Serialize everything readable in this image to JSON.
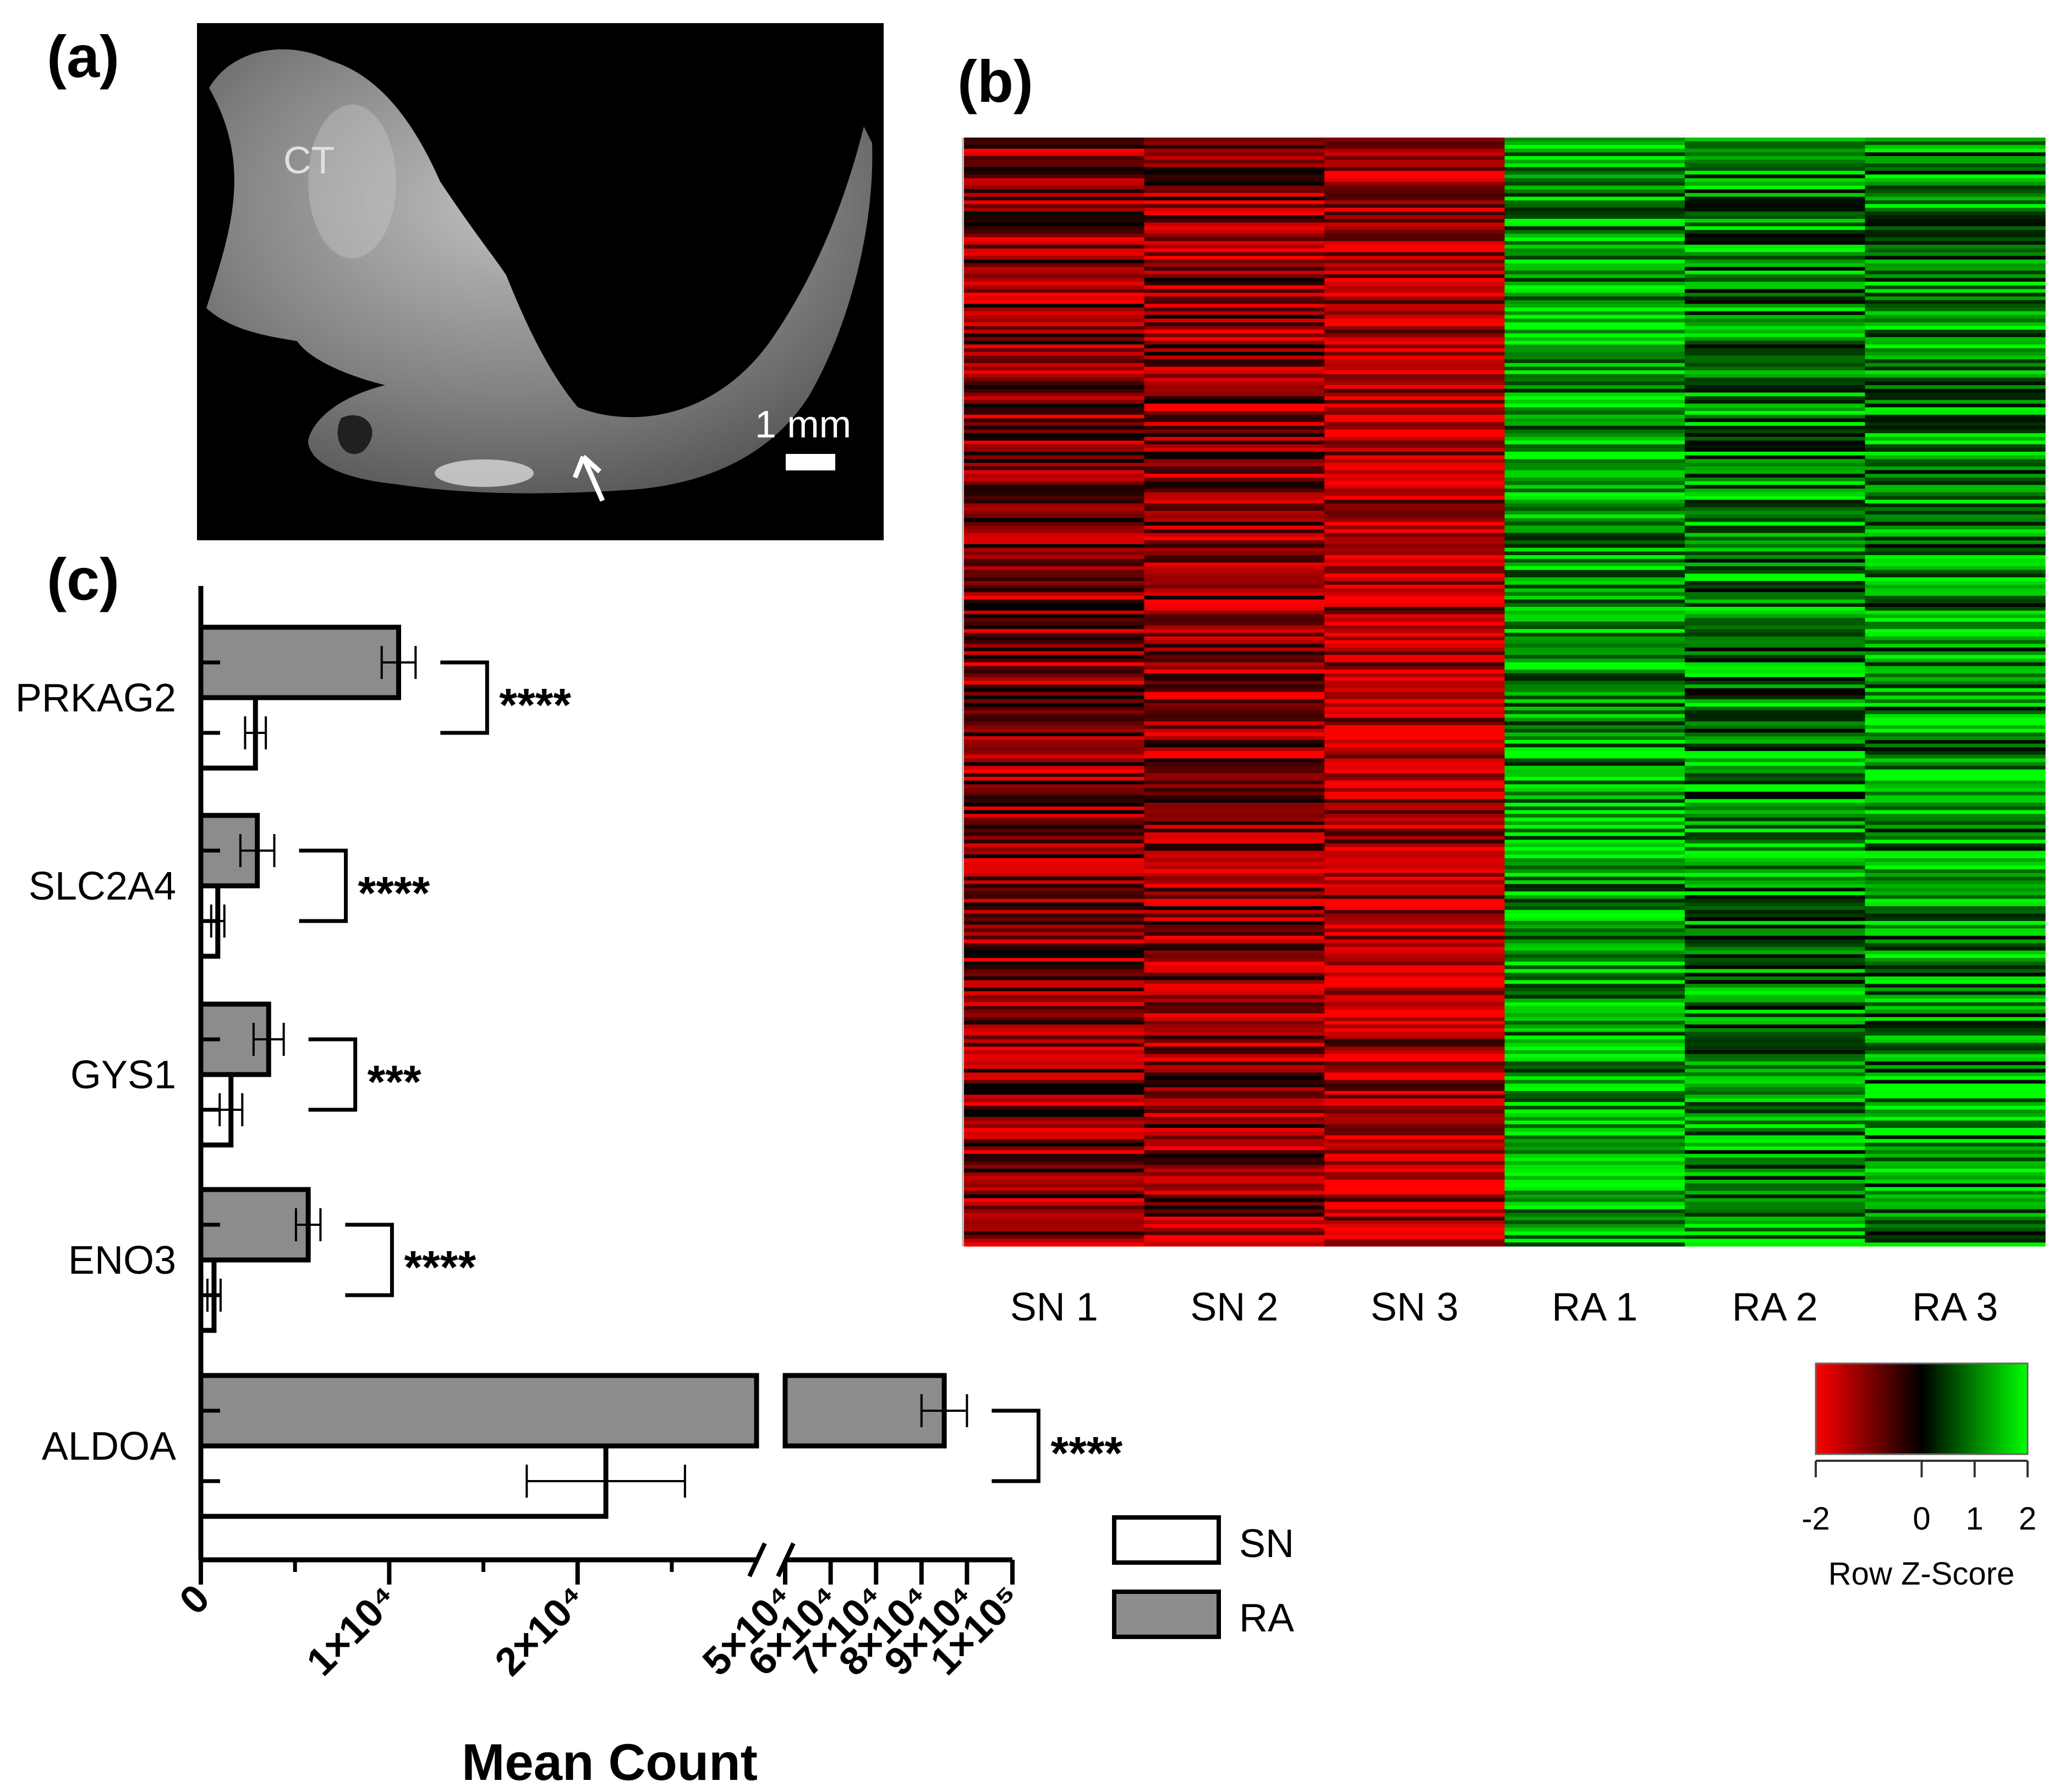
{
  "panels": {
    "a": {
      "label": "(a)",
      "annotation": "CT",
      "scale_bar": "1 mm",
      "colors": {
        "background": "#000000",
        "tissue": "#8f8f8f"
      }
    },
    "b": {
      "label": "(b)",
      "colorscale": {
        "title": "Row Z-Score",
        "ticks": [
          {
            "value": -2,
            "label": "-2"
          },
          {
            "value": 0,
            "label": "0"
          },
          {
            "value": 1,
            "label": "1"
          },
          {
            "value": 2,
            "label": "2"
          }
        ],
        "colors": {
          "low": "#ff0000",
          "mid": "#000000",
          "high": "#00ff00"
        }
      }
    },
    "c": {
      "label": "(c)"
    }
  },
  "chart_data": [
    {
      "id": "heatmap",
      "type": "heatmap",
      "columns": [
        "SN 1",
        "SN 2",
        "SN 3",
        "RA 1",
        "RA 2",
        "RA 3"
      ],
      "column_mean_z": [
        -1.0,
        -1.1,
        -1.5,
        1.3,
        1.0,
        1.1
      ],
      "value_range": [
        -2,
        2
      ]
    },
    {
      "id": "bar-chart",
      "type": "bar",
      "orientation": "horizontal",
      "xlabel": "Mean Count",
      "categories": [
        "PRKAG2",
        "SLC2A4",
        "GYS1",
        "ENO3",
        "ALDOA"
      ],
      "series": [
        {
          "name": "RA",
          "color": "#8c8c8c",
          "values": [
            10500,
            3000,
            3600,
            5700,
            85000
          ],
          "errors": [
            900,
            900,
            800,
            650,
            5000
          ]
        },
        {
          "name": "SN",
          "color": "#ffffff",
          "values": [
            2900,
            900,
            1600,
            700,
            21500
          ],
          "errors": [
            550,
            350,
            600,
            350,
            4200
          ]
        }
      ],
      "significance": [
        "****",
        "****",
        "***",
        "****",
        "****"
      ],
      "x_axis": {
        "broken": true,
        "segment1_range": [
          0,
          29500
        ],
        "segment2_range": [
          50000,
          100000
        ],
        "ticks": [
          {
            "value": 0,
            "label": "0"
          },
          {
            "value": 10000,
            "label": "1×10⁴"
          },
          {
            "value": 20000,
            "label": "2×10⁴"
          },
          {
            "value": 50000,
            "label": "5×10⁴"
          },
          {
            "value": 60000,
            "label": "6×10⁴"
          },
          {
            "value": 70000,
            "label": "7×10⁴"
          },
          {
            "value": 80000,
            "label": "8×10⁴"
          },
          {
            "value": 90000,
            "label": "9×10⁴"
          },
          {
            "value": 100000,
            "label": "1×10⁵"
          }
        ]
      },
      "legend": [
        {
          "name": "SN",
          "color": "#ffffff"
        },
        {
          "name": "RA",
          "color": "#8c8c8c"
        }
      ],
      "legend_position": "bottom-right"
    }
  ]
}
